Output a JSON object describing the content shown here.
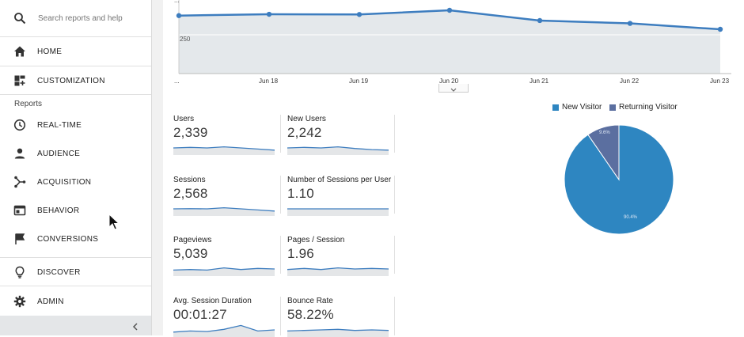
{
  "sidebar": {
    "search_placeholder": "Search reports and help",
    "home": "HOME",
    "customization": "CUSTOMIZATION",
    "reports_heading": "Reports",
    "realtime": "REAL-TIME",
    "audience": "AUDIENCE",
    "acquisition": "ACQUISITION",
    "behavior": "BEHAVIOR",
    "conversions": "CONVERSIONS",
    "discover": "DISCOVER",
    "admin": "ADMIN"
  },
  "trend": {
    "y_label": "250",
    "top_label": "...",
    "x_ticks": [
      "...",
      "Jun 18",
      "Jun 19",
      "Jun 20",
      "Jun 21",
      "Jun 22",
      "Jun 23"
    ],
    "values": [
      0.72,
      0.79,
      0.78,
      1.0,
      0.46,
      0.31,
      0.0
    ],
    "line_color": "#3d7dbf",
    "area_color": "#e4e8eb"
  },
  "metrics": [
    {
      "name": "Users",
      "value": "2,339"
    },
    {
      "name": "New Users",
      "value": "2,242"
    },
    {
      "name": "Sessions",
      "value": "2,568"
    },
    {
      "name": "Number of Sessions per User",
      "value": "1.10"
    },
    {
      "name": "Pageviews",
      "value": "5,039"
    },
    {
      "name": "Pages / Session",
      "value": "1.96"
    },
    {
      "name": "Avg. Session Duration",
      "value": "00:01:27"
    },
    {
      "name": "Bounce Rate",
      "value": "58.22%"
    }
  ],
  "pie": {
    "legend": [
      {
        "name": "New Visitor",
        "color": "#2e86c1"
      },
      {
        "name": "Returning Visitor",
        "color": "#5b6fa0"
      }
    ],
    "slices": [
      {
        "name": "New Visitor",
        "fraction": 0.904,
        "label": "90.4%",
        "color": "#2e86c1"
      },
      {
        "name": "Returning Visitor",
        "fraction": 0.096,
        "label": "9.6%",
        "color": "#5b6fa0"
      }
    ]
  }
}
